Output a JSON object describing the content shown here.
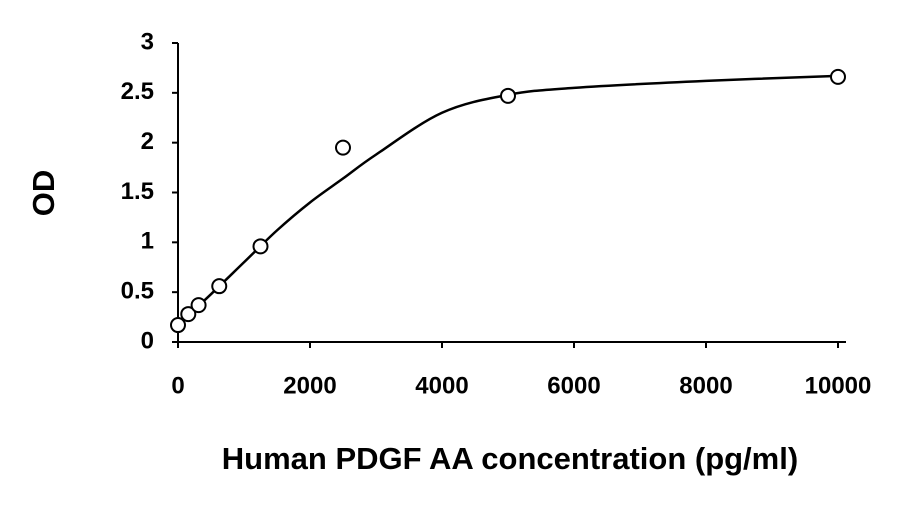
{
  "chart_data": {
    "type": "scatter",
    "x_label": "Human PDGF AA concentration (pg/ml)",
    "y_label": "OD",
    "series": [
      {
        "marker": "circle",
        "color": "#000000",
        "x": [
          0,
          156,
          312,
          625,
          1250,
          2500,
          5000,
          10000
        ],
        "values": [
          0.17,
          0.28,
          0.37,
          0.56,
          0.96,
          1.95,
          2.47,
          2.66
        ]
      },
      {
        "line": true,
        "color": "#000000",
        "x": [
          0,
          500,
          1000,
          1500,
          2000,
          2500,
          3000,
          4000,
          5000,
          6000,
          8000,
          10000
        ],
        "values": [
          0.17,
          0.48,
          0.8,
          1.12,
          1.4,
          1.64,
          1.88,
          2.3,
          2.48,
          2.55,
          2.62,
          2.67
        ]
      }
    ],
    "xlim": [
      0,
      10000
    ],
    "xticks": [
      0,
      2000,
      4000,
      6000,
      8000,
      10000
    ],
    "ylim": [
      0,
      3
    ],
    "yticks": [
      0,
      0.5,
      1,
      1.5,
      2,
      2.5,
      3
    ]
  }
}
